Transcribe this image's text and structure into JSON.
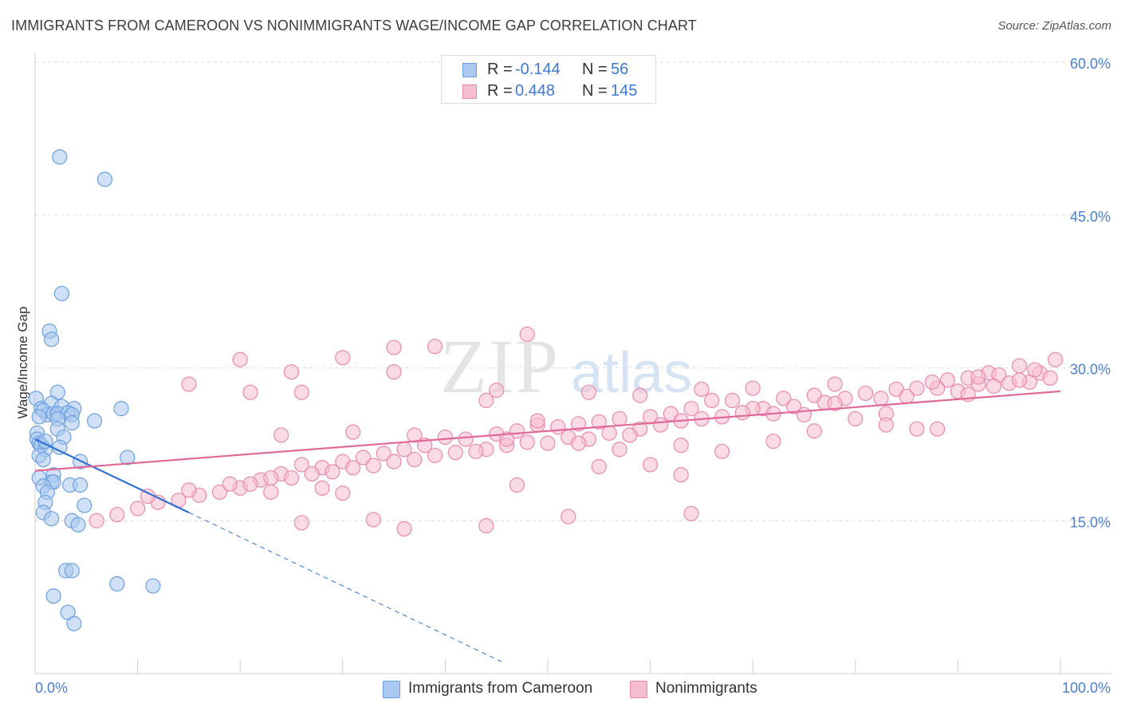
{
  "title": "IMMIGRANTS FROM CAMEROON VS NONIMMIGRANTS WAGE/INCOME GAP CORRELATION CHART",
  "source": "Source: ZipAtlas.com",
  "watermark": {
    "zip": "ZIP",
    "atlas": "atlas"
  },
  "stats": [
    {
      "r_label": "R =",
      "r_value": "-0.144",
      "n_label": "N =",
      "n_value": "56"
    },
    {
      "r_label": "R =",
      "r_value": "0.448",
      "n_label": "N =",
      "n_value": "145"
    }
  ],
  "legend": [
    {
      "label": "Immigrants from Cameroon"
    },
    {
      "label": "Nonimmigrants"
    }
  ],
  "colors": {
    "blue_fill": "#aac8f0",
    "blue_stroke": "#6a9fe0",
    "blue_line": "#2f6fd1",
    "pink_fill": "#f6bcd0",
    "pink_stroke": "#e98aab",
    "pink_line": "#e0699a",
    "grid": "#dcdcdc",
    "tick_text": "#4a7fd0"
  },
  "chart_data": {
    "type": "scatter",
    "title": "IMMIGRANTS FROM CAMEROON VS NONIMMIGRANTS WAGE/INCOME GAP CORRELATION CHART",
    "xlabel": "",
    "ylabel": "Wage/Income Gap",
    "xlim": [
      0,
      100
    ],
    "ylim": [
      0,
      60
    ],
    "x_tick_labels": [
      "0.0%",
      "100.0%"
    ],
    "y_ticks": [
      15,
      30,
      45,
      60
    ],
    "y_tick_labels": [
      "15.0%",
      "30.0%",
      "45.0%",
      "60.0%"
    ],
    "grid": true,
    "legend_position": "bottom",
    "series": [
      {
        "name": "Immigrants from Cameroon",
        "r": -0.144,
        "n": 56,
        "trend": {
          "x0": 0,
          "y0": 23.0,
          "x1": 15.0,
          "y1": 15.8,
          "dash_to_x": 45.5
        },
        "points": [
          [
            2.4,
            50.7
          ],
          [
            6.8,
            48.5
          ],
          [
            2.6,
            37.3
          ],
          [
            1.4,
            33.6
          ],
          [
            1.6,
            32.8
          ],
          [
            0.1,
            27.0
          ],
          [
            2.2,
            27.6
          ],
          [
            0.6,
            26.0
          ],
          [
            1.6,
            26.5
          ],
          [
            2.6,
            26.2
          ],
          [
            3.8,
            26.0
          ],
          [
            8.4,
            26.0
          ],
          [
            1.2,
            25.4
          ],
          [
            0.8,
            25.8
          ],
          [
            1.8,
            25.5
          ],
          [
            2.2,
            25.5
          ],
          [
            3.2,
            25.6
          ],
          [
            3.6,
            25.4
          ],
          [
            0.4,
            25.2
          ],
          [
            2.2,
            25.0
          ],
          [
            5.8,
            24.8
          ],
          [
            3.6,
            24.6
          ],
          [
            0.2,
            23.6
          ],
          [
            2.2,
            24.0
          ],
          [
            0.2,
            23.0
          ],
          [
            2.8,
            23.2
          ],
          [
            0.4,
            22.6
          ],
          [
            0.6,
            22.4
          ],
          [
            1.0,
            22.0
          ],
          [
            2.4,
            22.2
          ],
          [
            0.4,
            21.4
          ],
          [
            0.8,
            21.0
          ],
          [
            9.0,
            21.2
          ],
          [
            4.4,
            20.8
          ],
          [
            1.8,
            19.5
          ],
          [
            0.4,
            19.2
          ],
          [
            1.6,
            18.8
          ],
          [
            1.8,
            18.8
          ],
          [
            0.8,
            18.4
          ],
          [
            3.4,
            18.5
          ],
          [
            4.4,
            18.5
          ],
          [
            1.2,
            17.8
          ],
          [
            1.0,
            16.8
          ],
          [
            4.8,
            16.5
          ],
          [
            0.8,
            15.8
          ],
          [
            1.6,
            15.2
          ],
          [
            3.6,
            15.0
          ],
          [
            4.2,
            14.6
          ],
          [
            3.0,
            10.1
          ],
          [
            3.6,
            10.1
          ],
          [
            8.0,
            8.8
          ],
          [
            11.5,
            8.6
          ],
          [
            1.8,
            7.6
          ],
          [
            3.2,
            6.0
          ],
          [
            3.8,
            4.9
          ],
          [
            1.0,
            22.8
          ]
        ]
      },
      {
        "name": "Nonimmigrants",
        "r": 0.448,
        "n": 145,
        "trend": {
          "x0": 0,
          "y0": 19.9,
          "x1": 100,
          "y1": 27.7
        },
        "points": [
          [
            96,
            30.2
          ],
          [
            93,
            29.5
          ],
          [
            94,
            29.3
          ],
          [
            98,
            29.5
          ],
          [
            99,
            29.0
          ],
          [
            97,
            28.6
          ],
          [
            91,
            29.0
          ],
          [
            89,
            28.8
          ],
          [
            92,
            28.4
          ],
          [
            95,
            28.5
          ],
          [
            88,
            28.0
          ],
          [
            86,
            28.0
          ],
          [
            84,
            27.9
          ],
          [
            90,
            27.7
          ],
          [
            91,
            27.4
          ],
          [
            85,
            27.2
          ],
          [
            81,
            27.5
          ],
          [
            79,
            27.0
          ],
          [
            76,
            27.3
          ],
          [
            73,
            27.0
          ],
          [
            77,
            26.6
          ],
          [
            74,
            26.2
          ],
          [
            71,
            26.0
          ],
          [
            68,
            26.8
          ],
          [
            70,
            26.0
          ],
          [
            66,
            26.8
          ],
          [
            64,
            26.0
          ],
          [
            62,
            25.5
          ],
          [
            60,
            25.2
          ],
          [
            57,
            25.0
          ],
          [
            55,
            24.7
          ],
          [
            53,
            24.5
          ],
          [
            51,
            24.2
          ],
          [
            49,
            24.4
          ],
          [
            47,
            23.8
          ],
          [
            45,
            23.5
          ],
          [
            42,
            23.0
          ],
          [
            40,
            23.2
          ],
          [
            38,
            22.4
          ],
          [
            36,
            22.0
          ],
          [
            34,
            21.6
          ],
          [
            32,
            21.2
          ],
          [
            30,
            20.8
          ],
          [
            28,
            20.2
          ],
          [
            26,
            20.5
          ],
          [
            24,
            19.6
          ],
          [
            22,
            19.0
          ],
          [
            20,
            18.2
          ],
          [
            18,
            17.8
          ],
          [
            16,
            17.5
          ],
          [
            14,
            17.0
          ],
          [
            12,
            16.8
          ],
          [
            10,
            16.2
          ],
          [
            8,
            15.6
          ],
          [
            6,
            15.0
          ],
          [
            99.5,
            30.8
          ],
          [
            97.5,
            29.8
          ],
          [
            93.5,
            28.2
          ],
          [
            87.5,
            28.6
          ],
          [
            82.5,
            27.0
          ],
          [
            78,
            26.5
          ],
          [
            72,
            25.5
          ],
          [
            67,
            25.2
          ],
          [
            63,
            24.8
          ],
          [
            59,
            24.0
          ],
          [
            56,
            23.6
          ],
          [
            52,
            23.2
          ],
          [
            48,
            22.7
          ],
          [
            44,
            22.0
          ],
          [
            41,
            21.7
          ],
          [
            37,
            21.0
          ],
          [
            33,
            20.4
          ],
          [
            29,
            19.8
          ],
          [
            25,
            19.2
          ],
          [
            21,
            18.6
          ],
          [
            83,
            25.5
          ],
          [
            86,
            24.0
          ],
          [
            80,
            25.0
          ],
          [
            75,
            25.4
          ],
          [
            69,
            25.6
          ],
          [
            65,
            25.0
          ],
          [
            61,
            24.4
          ],
          [
            58,
            23.4
          ],
          [
            54,
            23.0
          ],
          [
            50,
            22.6
          ],
          [
            46,
            22.4
          ],
          [
            43,
            21.8
          ],
          [
            39,
            21.4
          ],
          [
            35,
            20.8
          ],
          [
            31,
            20.2
          ],
          [
            27,
            19.6
          ],
          [
            23,
            19.2
          ],
          [
            19,
            18.6
          ],
          [
            15,
            18.0
          ],
          [
            11,
            17.4
          ],
          [
            48,
            33.3
          ],
          [
            49,
            24.8
          ],
          [
            39,
            32.1
          ],
          [
            35,
            32.0
          ],
          [
            30,
            31.0
          ],
          [
            20,
            30.8
          ],
          [
            25,
            29.6
          ],
          [
            35,
            29.6
          ],
          [
            15,
            28.4
          ],
          [
            21,
            27.6
          ],
          [
            26,
            27.6
          ],
          [
            45,
            27.8
          ],
          [
            54,
            27.6
          ],
          [
            65,
            27.9
          ],
          [
            70,
            28.0
          ],
          [
            44,
            26.8
          ],
          [
            59,
            27.3
          ],
          [
            78,
            28.4
          ],
          [
            92,
            29.1
          ],
          [
            96,
            28.8
          ],
          [
            24,
            23.4
          ],
          [
            31,
            23.7
          ],
          [
            37,
            23.4
          ],
          [
            46,
            23.0
          ],
          [
            53,
            22.6
          ],
          [
            57,
            22.0
          ],
          [
            63,
            22.4
          ],
          [
            67,
            21.8
          ],
          [
            72,
            22.8
          ],
          [
            76,
            23.8
          ],
          [
            83,
            24.4
          ],
          [
            88,
            24.0
          ],
          [
            63,
            19.5
          ],
          [
            60,
            20.5
          ],
          [
            55,
            20.3
          ],
          [
            47,
            18.5
          ],
          [
            52,
            15.4
          ],
          [
            64,
            15.7
          ],
          [
            44,
            14.5
          ],
          [
            36,
            14.2
          ],
          [
            33,
            15.1
          ],
          [
            30,
            17.7
          ],
          [
            28,
            18.2
          ],
          [
            26,
            14.8
          ],
          [
            23,
            17.8
          ]
        ]
      }
    ]
  }
}
